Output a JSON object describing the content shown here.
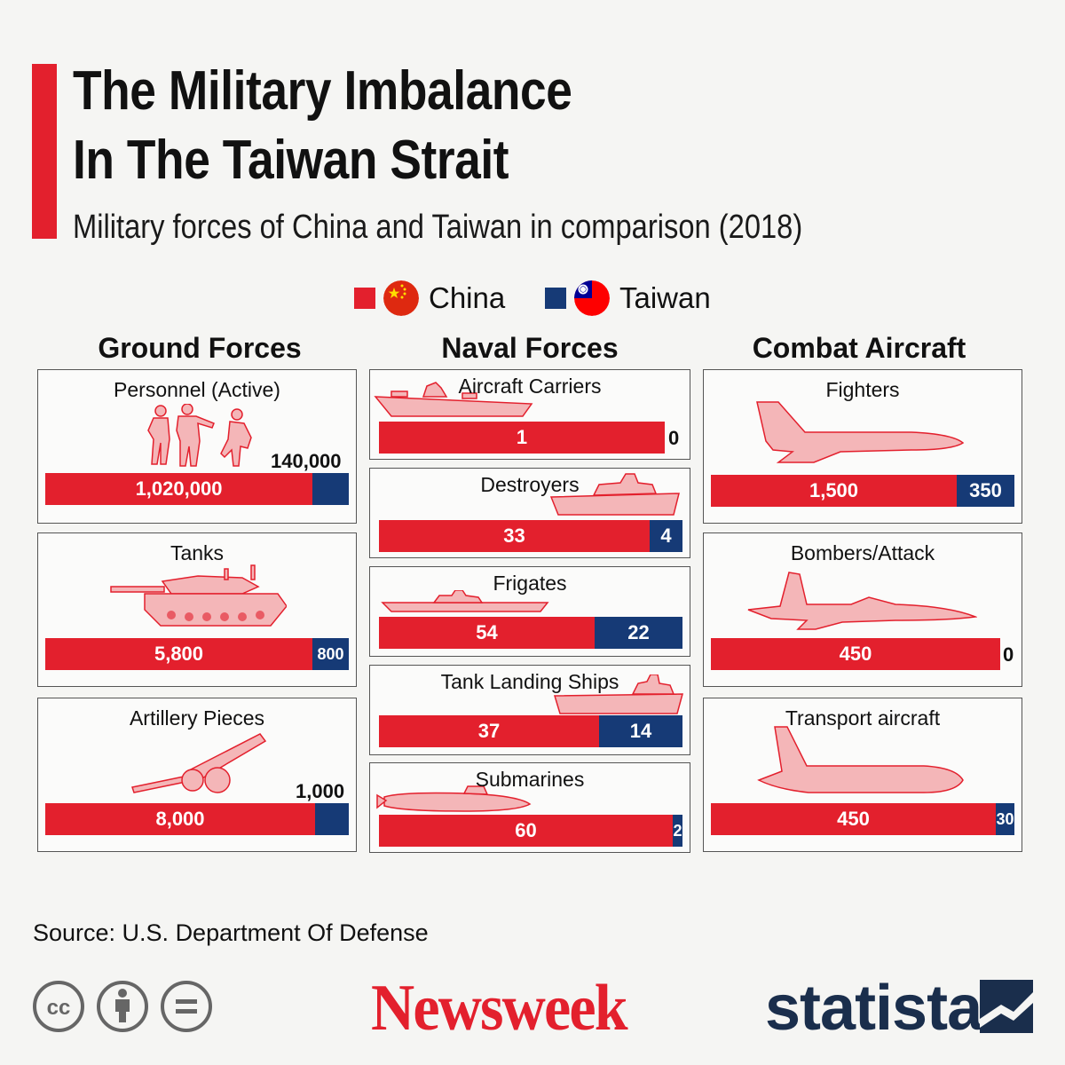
{
  "header": {
    "title_line1": "The Military Imbalance",
    "title_line2": "In The Taiwan Strait",
    "subtitle": "Military forces of China and Taiwan in comparison (2018)"
  },
  "legend": {
    "china_label": "China",
    "taiwan_label": "Taiwan"
  },
  "columns": {
    "ground": "Ground Forces",
    "naval": "Naval Forces",
    "aircraft": "Combat Aircraft"
  },
  "colors": {
    "china": "#e3202d",
    "taiwan": "#163a76",
    "accent": "#e3202d",
    "icon_fill": "#f4b6b8",
    "icon_stroke": "#e3202d"
  },
  "chart_data": {
    "type": "bar",
    "title": "The Military Imbalance In The Taiwan Strait",
    "subtitle": "Military forces of China and Taiwan in comparison (2018)",
    "series": [
      {
        "name": "China"
      },
      {
        "name": "Taiwan"
      }
    ],
    "panels": [
      {
        "group": "Ground Forces",
        "label": "Personnel (Active)",
        "china": 1020000,
        "taiwan": 140000,
        "china_text": "1,020,000",
        "taiwan_text": "140,000",
        "icon": "soldiers-icon"
      },
      {
        "group": "Ground Forces",
        "label": "Tanks",
        "china": 5800,
        "taiwan": 800,
        "china_text": "5,800",
        "taiwan_text": "800",
        "icon": "tank-icon"
      },
      {
        "group": "Ground Forces",
        "label": "Artillery Pieces",
        "china": 8000,
        "taiwan": 1000,
        "china_text": "8,000",
        "taiwan_text": "1,000",
        "icon": "artillery-icon"
      },
      {
        "group": "Naval Forces",
        "label": "Aircraft Carriers",
        "china": 1,
        "taiwan": 0,
        "china_text": "1",
        "taiwan_text": "0",
        "icon": "aircraft-carrier-icon"
      },
      {
        "group": "Naval Forces",
        "label": "Destroyers",
        "china": 33,
        "taiwan": 4,
        "china_text": "33",
        "taiwan_text": "4",
        "icon": "destroyer-icon"
      },
      {
        "group": "Naval Forces",
        "label": "Frigates",
        "china": 54,
        "taiwan": 22,
        "china_text": "54",
        "taiwan_text": "22",
        "icon": "frigate-icon"
      },
      {
        "group": "Naval Forces",
        "label": "Tank Landing Ships",
        "china": 37,
        "taiwan": 14,
        "china_text": "37",
        "taiwan_text": "14",
        "icon": "landing-ship-icon"
      },
      {
        "group": "Naval Forces",
        "label": "Submarines",
        "china": 60,
        "taiwan": 2,
        "china_text": "60",
        "taiwan_text": "2",
        "icon": "submarine-icon"
      },
      {
        "group": "Combat Aircraft",
        "label": "Fighters",
        "china": 1500,
        "taiwan": 350,
        "china_text": "1,500",
        "taiwan_text": "350",
        "icon": "fighter-jet-icon"
      },
      {
        "group": "Combat Aircraft",
        "label": "Bombers/Attack",
        "china": 450,
        "taiwan": 0,
        "china_text": "450",
        "taiwan_text": "0",
        "icon": "bomber-icon"
      },
      {
        "group": "Combat Aircraft",
        "label": "Transport aircraft",
        "china": 450,
        "taiwan": 30,
        "china_text": "450",
        "taiwan_text": "30",
        "icon": "transport-plane-icon"
      }
    ]
  },
  "footer": {
    "source": "Source: U.S. Department Of Defense",
    "newsweek": "Newsweek",
    "statista": "statista",
    "cc_icons": [
      "creative-commons-icon",
      "attribution-icon",
      "no-derivatives-icon"
    ]
  }
}
